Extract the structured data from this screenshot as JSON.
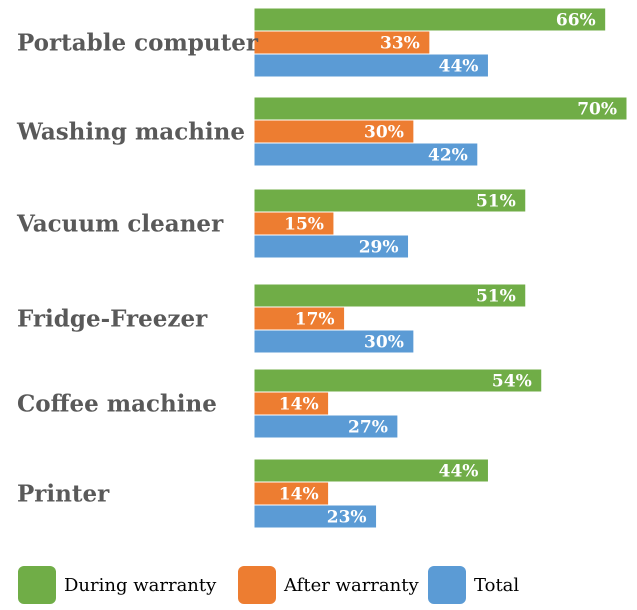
{
  "chart_data": {
    "type": "bar",
    "orientation": "horizontal",
    "title": "",
    "xlabel": "",
    "ylabel": "",
    "xlim": [
      0,
      70
    ],
    "grid": false,
    "legend_position": "bottom",
    "value_suffix": "%",
    "categories": [
      "Portable computer",
      "Washing machine",
      "Vacuum cleaner",
      "Fridge-Freezer",
      "Coffee machine",
      "Printer"
    ],
    "series": [
      {
        "name": "During warranty",
        "color": "#70ad47",
        "values": [
          66,
          70,
          51,
          51,
          54,
          44
        ]
      },
      {
        "name": "After warranty",
        "color": "#ed7d31",
        "values": [
          33,
          30,
          15,
          17,
          14,
          14
        ]
      },
      {
        "name": "Total",
        "color": "#5b9bd5",
        "values": [
          44,
          42,
          29,
          30,
          27,
          23
        ]
      }
    ]
  }
}
